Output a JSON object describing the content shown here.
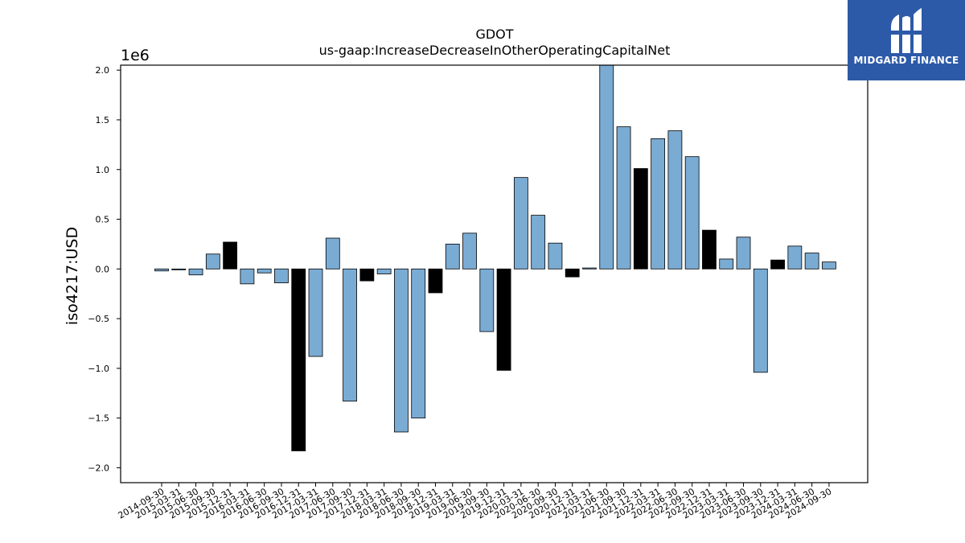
{
  "chart_data": {
    "type": "bar",
    "title": "GDOT",
    "subtitle": "us-gaap:IncreaseDecreaseInOtherOperatingCapitalNet",
    "ylabel": "iso4217:USD",
    "y_multiplier_label": "1e6",
    "ylim": [
      -2.15,
      2.05
    ],
    "y_ticks": [
      -2.0,
      -1.5,
      -1.0,
      -0.5,
      0.0,
      0.5,
      1.0,
      1.5,
      2.0
    ],
    "y_tick_labels": [
      "−2.0",
      "−1.5",
      "−1.0",
      "−0.5",
      "0.0",
      "0.5",
      "1.0",
      "1.5",
      "2.0"
    ],
    "categories": [
      "2014-09-30",
      "2015-03-31",
      "2015-06-30",
      "2015-09-30",
      "2015-12-31",
      "2016-03-31",
      "2016-06-30",
      "2016-09-30",
      "2016-12-31",
      "2017-03-31",
      "2017-06-30",
      "2017-09-30",
      "2017-12-31",
      "2018-03-31",
      "2018-06-30",
      "2018-09-30",
      "2018-12-31",
      "2019-03-31",
      "2019-06-30",
      "2019-09-30",
      "2019-12-31",
      "2020-03-31",
      "2020-06-30",
      "2020-09-30",
      "2020-12-31",
      "2021-03-31",
      "2021-06-30",
      "2021-09-30",
      "2021-12-31",
      "2022-03-31",
      "2022-06-30",
      "2022-09-30",
      "2022-12-31",
      "2023-03-31",
      "2023-06-30",
      "2023-09-30",
      "2023-12-31",
      "2024-03-31",
      "2024-06-30",
      "2024-09-30"
    ],
    "values": [
      -0.02,
      -0.01,
      -0.06,
      0.15,
      0.27,
      -0.15,
      -0.04,
      -0.14,
      -1.83,
      -0.88,
      0.31,
      -1.33,
      -0.12,
      -0.05,
      -1.64,
      -1.5,
      -0.24,
      0.25,
      0.36,
      -0.63,
      -1.02,
      0.92,
      0.54,
      0.26,
      -0.08,
      0.01,
      2.15,
      1.43,
      1.01,
      1.31,
      1.39,
      1.13,
      0.39,
      0.1,
      0.32,
      -1.04,
      0.09,
      0.23,
      0.16,
      0.07
    ],
    "highlight": [
      false,
      false,
      false,
      false,
      true,
      false,
      false,
      false,
      true,
      false,
      false,
      false,
      true,
      false,
      false,
      false,
      true,
      false,
      false,
      false,
      true,
      false,
      false,
      false,
      true,
      false,
      false,
      false,
      true,
      false,
      false,
      false,
      true,
      false,
      false,
      false,
      true,
      false,
      false,
      false
    ],
    "colors": {
      "bar": "#7aabd3",
      "highlight": "#000000",
      "edge": "#000000"
    },
    "grid": false,
    "legend": "none"
  },
  "logo": {
    "text": "MIDGARD FINANCE",
    "background": "#2d5aa8"
  }
}
